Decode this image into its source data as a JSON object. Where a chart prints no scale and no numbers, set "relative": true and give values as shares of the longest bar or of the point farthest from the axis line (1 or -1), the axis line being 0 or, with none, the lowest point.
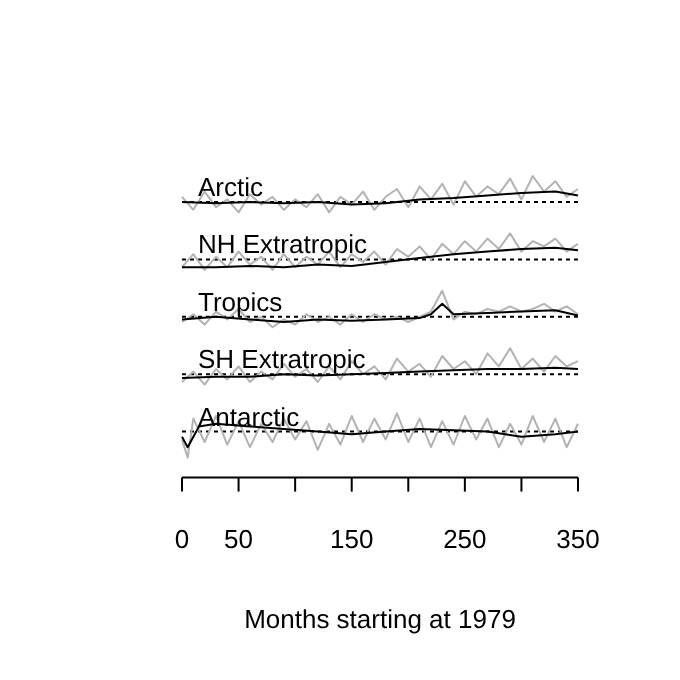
{
  "chart_data": [
    {
      "type": "line",
      "title": "Arctic",
      "relative": true,
      "xlim": [
        0,
        350
      ],
      "tick_labels": false,
      "ref_lines": [
        {
          "axis": "y",
          "value": 0,
          "line_style": "dotted",
          "color": "#000000"
        }
      ],
      "series": [
        {
          "color": "#b3b3b3",
          "x": [
            0,
            10,
            20,
            30,
            40,
            50,
            60,
            70,
            80,
            90,
            100,
            110,
            120,
            130,
            140,
            150,
            160,
            170,
            180,
            190,
            200,
            210,
            220,
            230,
            240,
            250,
            260,
            270,
            280,
            290,
            300,
            310,
            320,
            330,
            340,
            350
          ],
          "values": [
            0.2,
            -0.3,
            0.4,
            -0.2,
            0.1,
            -0.4,
            0.3,
            -0.1,
            0.2,
            -0.3,
            0.1,
            -0.2,
            0.3,
            -0.4,
            0.2,
            -0.1,
            0.4,
            -0.3,
            0.2,
            0.5,
            -0.2,
            0.6,
            0.1,
            0.7,
            -0.1,
            0.8,
            0.2,
            0.6,
            0.3,
            0.9,
            0.1,
            1.0,
            0.4,
            0.8,
            0.2,
            0.5
          ]
        },
        {
          "color": "#000000",
          "x": [
            0,
            30,
            60,
            90,
            120,
            150,
            180,
            210,
            240,
            270,
            300,
            330,
            350
          ],
          "values": [
            0,
            -0.05,
            0,
            -0.05,
            0,
            -0.1,
            -0.05,
            0.1,
            0.15,
            0.25,
            0.35,
            0.4,
            0.25
          ]
        }
      ]
    },
    {
      "type": "line",
      "title": "NH Extratropic",
      "relative": true,
      "xlim": [
        0,
        350
      ],
      "tick_labels": false,
      "ref_lines": [
        {
          "axis": "y",
          "value": 0,
          "line_style": "dotted",
          "color": "#000000"
        }
      ],
      "series": [
        {
          "color": "#b3b3b3",
          "x": [
            0,
            10,
            20,
            30,
            40,
            50,
            60,
            70,
            80,
            90,
            100,
            110,
            120,
            130,
            140,
            150,
            160,
            170,
            180,
            190,
            200,
            210,
            220,
            230,
            240,
            250,
            260,
            270,
            280,
            290,
            300,
            310,
            320,
            330,
            340,
            350
          ],
          "values": [
            -0.3,
            0.2,
            -0.4,
            0.1,
            -0.3,
            0.3,
            -0.2,
            0.1,
            -0.4,
            0.2,
            -0.3,
            0.1,
            -0.2,
            0.3,
            -0.3,
            0.2,
            -0.1,
            0.3,
            -0.2,
            0.4,
            0.1,
            0.5,
            0,
            0.6,
            0.2,
            0.7,
            0.3,
            0.8,
            0.4,
            1.0,
            0.3,
            0.7,
            0.5,
            0.8,
            0.3,
            0.6
          ]
        },
        {
          "color": "#000000",
          "x": [
            0,
            30,
            60,
            90,
            120,
            150,
            180,
            210,
            240,
            270,
            300,
            330,
            350
          ],
          "values": [
            -0.3,
            -0.3,
            -0.25,
            -0.3,
            -0.2,
            -0.25,
            -0.1,
            0.05,
            0.2,
            0.3,
            0.4,
            0.45,
            0.35
          ]
        }
      ]
    },
    {
      "type": "line",
      "title": "Tropics",
      "relative": true,
      "xlim": [
        0,
        350
      ],
      "tick_labels": false,
      "ref_lines": [
        {
          "axis": "y",
          "value": 0,
          "line_style": "dotted",
          "color": "#000000"
        }
      ],
      "series": [
        {
          "color": "#b3b3b3",
          "x": [
            0,
            10,
            20,
            30,
            40,
            50,
            60,
            70,
            80,
            90,
            100,
            110,
            120,
            130,
            140,
            150,
            160,
            170,
            180,
            190,
            200,
            210,
            220,
            230,
            240,
            250,
            260,
            270,
            280,
            290,
            300,
            310,
            320,
            330,
            340,
            350
          ],
          "values": [
            -0.2,
            0.1,
            -0.3,
            0.2,
            -0.1,
            0.3,
            -0.2,
            0,
            -0.4,
            -0.1,
            -0.3,
            0.1,
            -0.2,
            0,
            -0.3,
            0.1,
            -0.2,
            0.1,
            -0.1,
            0,
            -0.2,
            0,
            0.2,
            1.0,
            -0.1,
            0.2,
            0.1,
            0.3,
            0.2,
            0.4,
            0.2,
            0.3,
            0.5,
            0.2,
            0.4,
            0.1
          ]
        },
        {
          "color": "#000000",
          "x": [
            0,
            30,
            60,
            90,
            120,
            150,
            180,
            210,
            220,
            230,
            240,
            270,
            300,
            330,
            350
          ],
          "values": [
            -0.1,
            0,
            -0.1,
            -0.2,
            -0.1,
            -0.15,
            -0.1,
            -0.05,
            0.1,
            0.5,
            0.1,
            0.15,
            0.2,
            0.25,
            0.05
          ]
        }
      ]
    },
    {
      "type": "line",
      "title": "SH Extratropic",
      "relative": true,
      "xlim": [
        0,
        350
      ],
      "tick_labels": false,
      "ref_lines": [
        {
          "axis": "y",
          "value": 0,
          "line_style": "dotted",
          "color": "#000000"
        }
      ],
      "series": [
        {
          "color": "#b3b3b3",
          "x": [
            0,
            10,
            20,
            30,
            40,
            50,
            60,
            70,
            80,
            90,
            100,
            110,
            120,
            130,
            140,
            150,
            160,
            170,
            180,
            190,
            200,
            210,
            220,
            230,
            240,
            250,
            260,
            270,
            280,
            290,
            300,
            310,
            320,
            330,
            340,
            350
          ],
          "values": [
            -0.3,
            0.1,
            -0.4,
            0.2,
            -0.2,
            0.3,
            -0.3,
            0.1,
            -0.2,
            0.4,
            -0.1,
            0.2,
            -0.3,
            0.3,
            -0.2,
            0.5,
            0,
            0.3,
            -0.2,
            0.6,
            0.1,
            0.4,
            -0.1,
            0.7,
            0.2,
            0.5,
            0,
            0.8,
            0.3,
            1.0,
            0.2,
            0.6,
            0.1,
            0.7,
            0.3,
            0.5
          ]
        },
        {
          "color": "#000000",
          "x": [
            0,
            30,
            60,
            90,
            120,
            150,
            180,
            210,
            240,
            270,
            300,
            330,
            350
          ],
          "values": [
            -0.15,
            -0.1,
            -0.1,
            0,
            -0.05,
            0,
            0.05,
            0.1,
            0.15,
            0.2,
            0.2,
            0.25,
            0.2
          ]
        }
      ]
    },
    {
      "type": "line",
      "title": "Antarctic",
      "relative": true,
      "xlim": [
        0,
        350
      ],
      "xticks": [
        0,
        50,
        {
          "value": 100,
          "label": null
        },
        150,
        {
          "value": 200,
          "label": null
        },
        250,
        {
          "value": 300,
          "label": null
        },
        350
      ],
      "xlabel": "Months starting at 1979",
      "tick_labels": "x",
      "ref_lines": [
        {
          "axis": "y",
          "value": 0,
          "line_style": "dotted",
          "color": "#000000"
        }
      ],
      "series": [
        {
          "color": "#b3b3b3",
          "x": [
            0,
            5,
            10,
            20,
            30,
            40,
            50,
            60,
            70,
            80,
            90,
            100,
            110,
            120,
            130,
            140,
            150,
            160,
            170,
            180,
            190,
            200,
            210,
            220,
            230,
            240,
            250,
            260,
            270,
            280,
            290,
            300,
            310,
            320,
            330,
            340,
            350
          ],
          "values": [
            -0.3,
            -1.0,
            0.5,
            -0.4,
            0.6,
            -0.5,
            0.4,
            -0.6,
            0.3,
            -0.4,
            0.5,
            -0.3,
            0.4,
            -0.7,
            0.3,
            -0.5,
            0.6,
            -0.4,
            0.5,
            -0.3,
            0.7,
            -0.4,
            0.5,
            -0.6,
            0.4,
            -0.5,
            0.6,
            -0.3,
            0.5,
            -0.6,
            0.3,
            -0.5,
            0.6,
            -0.4,
            0.5,
            -0.6,
            0.3
          ]
        },
        {
          "color": "#000000",
          "x": [
            0,
            5,
            15,
            30,
            60,
            90,
            120,
            150,
            180,
            210,
            240,
            270,
            300,
            330,
            350
          ],
          "values": [
            -0.2,
            -0.6,
            0.2,
            0.3,
            0.2,
            0.1,
            0,
            -0.1,
            0,
            0.1,
            0.05,
            0,
            -0.2,
            -0.1,
            0
          ]
        }
      ]
    }
  ]
}
